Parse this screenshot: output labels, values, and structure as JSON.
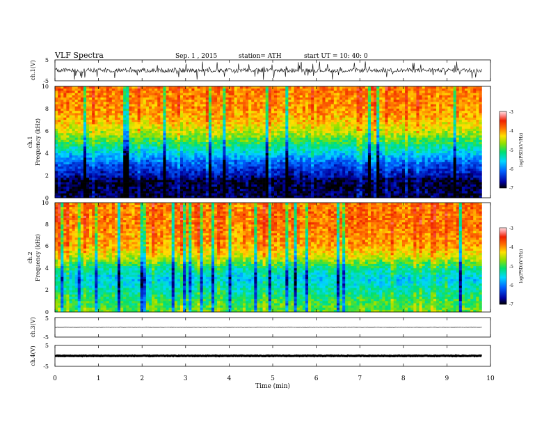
{
  "header": {
    "title": "VLF  Spectra",
    "date": "Sep. 1  , 2015",
    "station": "station= ATH",
    "start": "start  UT =   10: 40: 0"
  },
  "chart_data": {
    "type": "heatmap",
    "x_axis": {
      "label": "Time  (min)",
      "range": [
        0,
        10
      ],
      "ticks": [
        "0",
        "1",
        "2",
        "3",
        "4",
        "5",
        "6",
        "7",
        "8",
        "9",
        "10"
      ],
      "data_end": 9.8
    },
    "panels": [
      {
        "id": "ch1-waveform",
        "kind": "line",
        "ylabel": "ch.1(V)",
        "ylim": [
          -5,
          5
        ],
        "yticks": [
          "5",
          "-5"
        ],
        "baseline": 0,
        "noise_amplitude": 2.5,
        "color": "#000000"
      },
      {
        "id": "ch1-spectrogram",
        "kind": "heatmap",
        "ylabel_line1": "ch.1",
        "ylabel_line2": "Frequency  (kHz)",
        "ylim": [
          0,
          10
        ],
        "yticks": [
          "0",
          "2",
          "4",
          "6",
          "8",
          "10"
        ],
        "colorbar": {
          "label": "log(PSD)(V²/Hz)",
          "ticks": [
            "-3",
            "-4",
            "-5",
            "-6",
            "-7"
          ],
          "range": [
            -7,
            -3
          ]
        },
        "profile_log_psd": [
          {
            "f": 0.0,
            "v": -6.9
          },
          {
            "f": 1.5,
            "v": -6.9
          },
          {
            "f": 2.0,
            "v": -6.6
          },
          {
            "f": 3.0,
            "v": -6.2
          },
          {
            "f": 4.0,
            "v": -5.6
          },
          {
            "f": 5.0,
            "v": -5.0
          },
          {
            "f": 6.0,
            "v": -4.5
          },
          {
            "f": 7.0,
            "v": -4.2
          },
          {
            "f": 8.0,
            "v": -4.0
          },
          {
            "f": 10.0,
            "v": -3.9
          }
        ]
      },
      {
        "id": "ch2-spectrogram",
        "kind": "heatmap",
        "ylabel_line1": "ch.2",
        "ylabel_line2": "Frequency  (kHz)",
        "ylim": [
          0,
          10
        ],
        "yticks": [
          "0",
          "2",
          "4",
          "6",
          "8",
          "10"
        ],
        "colorbar": {
          "label": "log(PSD)(V²/Hz)",
          "ticks": [
            "-3",
            "-4",
            "-5",
            "-6",
            "-7"
          ],
          "range": [
            -7,
            -3
          ]
        },
        "profile_log_psd": [
          {
            "f": 0.0,
            "v": -4.8
          },
          {
            "f": 1.0,
            "v": -5.0
          },
          {
            "f": 2.0,
            "v": -5.3
          },
          {
            "f": 3.0,
            "v": -5.6
          },
          {
            "f": 4.0,
            "v": -5.2
          },
          {
            "f": 5.0,
            "v": -4.5
          },
          {
            "f": 6.0,
            "v": -4.1
          },
          {
            "f": 8.0,
            "v": -3.9
          },
          {
            "f": 10.0,
            "v": -3.9
          }
        ]
      },
      {
        "id": "ch3-waveform",
        "kind": "line",
        "ylabel": "ch.3(V)",
        "ylim": [
          -5,
          5
        ],
        "yticks": [
          "5",
          "-5"
        ],
        "baseline": 0,
        "noise_amplitude": 0.15,
        "color": "#000000"
      },
      {
        "id": "ch4-waveform",
        "kind": "line",
        "ylabel": "ch.4(V)",
        "ylim": [
          -5,
          5
        ],
        "yticks": [
          "5",
          "-5"
        ],
        "baseline": 0,
        "noise_amplitude": 0.35,
        "color": "#000000"
      }
    ]
  }
}
